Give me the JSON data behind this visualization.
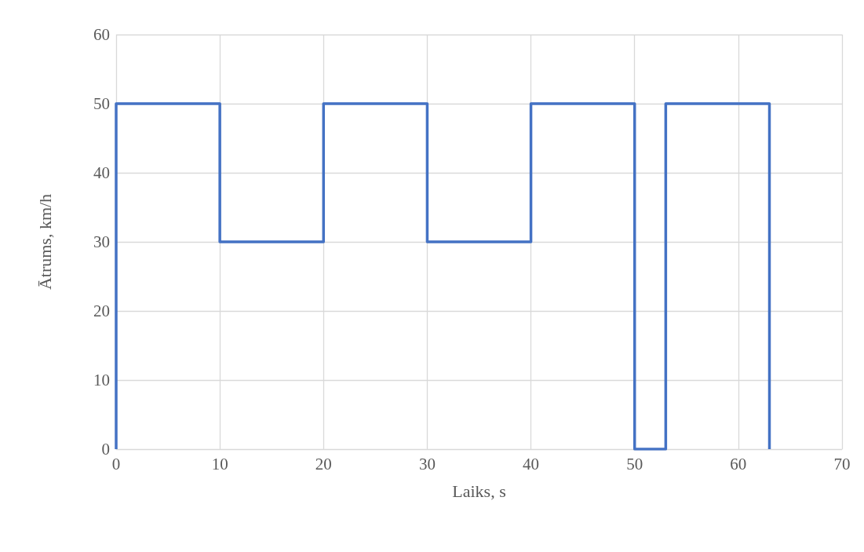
{
  "chart_data": {
    "type": "line",
    "xlabel": "Laiks, s",
    "ylabel": "Ātrums, km/h",
    "x": [
      0,
      0,
      10,
      10,
      20,
      20,
      30,
      30,
      40,
      40,
      50,
      50,
      53,
      53,
      63,
      63
    ],
    "series": [
      {
        "color": "#4472c4",
        "values": [
          0,
          50,
          50,
          30,
          30,
          50,
          50,
          30,
          30,
          50,
          50,
          0,
          0,
          50,
          50,
          0
        ]
      }
    ],
    "xlim": [
      0,
      70
    ],
    "xticks": [
      0,
      10,
      20,
      30,
      40,
      50,
      60,
      70
    ],
    "ylim": [
      0,
      60
    ],
    "yticks": [
      0,
      10,
      20,
      30,
      40,
      50,
      60
    ],
    "grid": true,
    "marker": "none",
    "line_style": "solid"
  }
}
